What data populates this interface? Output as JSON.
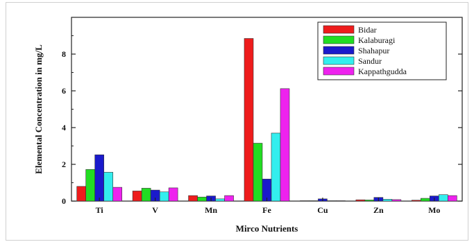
{
  "chart_data": {
    "type": "bar",
    "title": "",
    "xlabel": "Mirco Nutrients",
    "ylabel": "Elemental Concentration in mg/L",
    "categories": [
      "Ti",
      "V",
      "Mn",
      "Fe",
      "Cu",
      "Zn",
      "Mo"
    ],
    "series": [
      {
        "name": "Bidar",
        "color": "#ee1c1c",
        "values": [
          0.8,
          0.55,
          0.3,
          8.85,
          0.02,
          0.07,
          0.05
        ]
      },
      {
        "name": "Kalaburagi",
        "color": "#22dd22",
        "values": [
          1.72,
          0.7,
          0.22,
          3.15,
          0.02,
          0.06,
          0.15
        ]
      },
      {
        "name": "Shahapur",
        "color": "#1a1acc",
        "values": [
          2.52,
          0.6,
          0.28,
          1.2,
          0.12,
          0.2,
          0.28
        ]
      },
      {
        "name": "Sandur",
        "color": "#33eeee",
        "values": [
          1.57,
          0.5,
          0.12,
          3.7,
          0.02,
          0.1,
          0.35
        ]
      },
      {
        "name": "Kappathgudda",
        "color": "#ee22ee",
        "values": [
          0.75,
          0.72,
          0.3,
          6.12,
          0.02,
          0.08,
          0.3
        ]
      }
    ],
    "ylim": [
      0,
      10
    ],
    "yticks": [
      0,
      2,
      4,
      6,
      8
    ],
    "grid": false,
    "legend": "top-right"
  }
}
